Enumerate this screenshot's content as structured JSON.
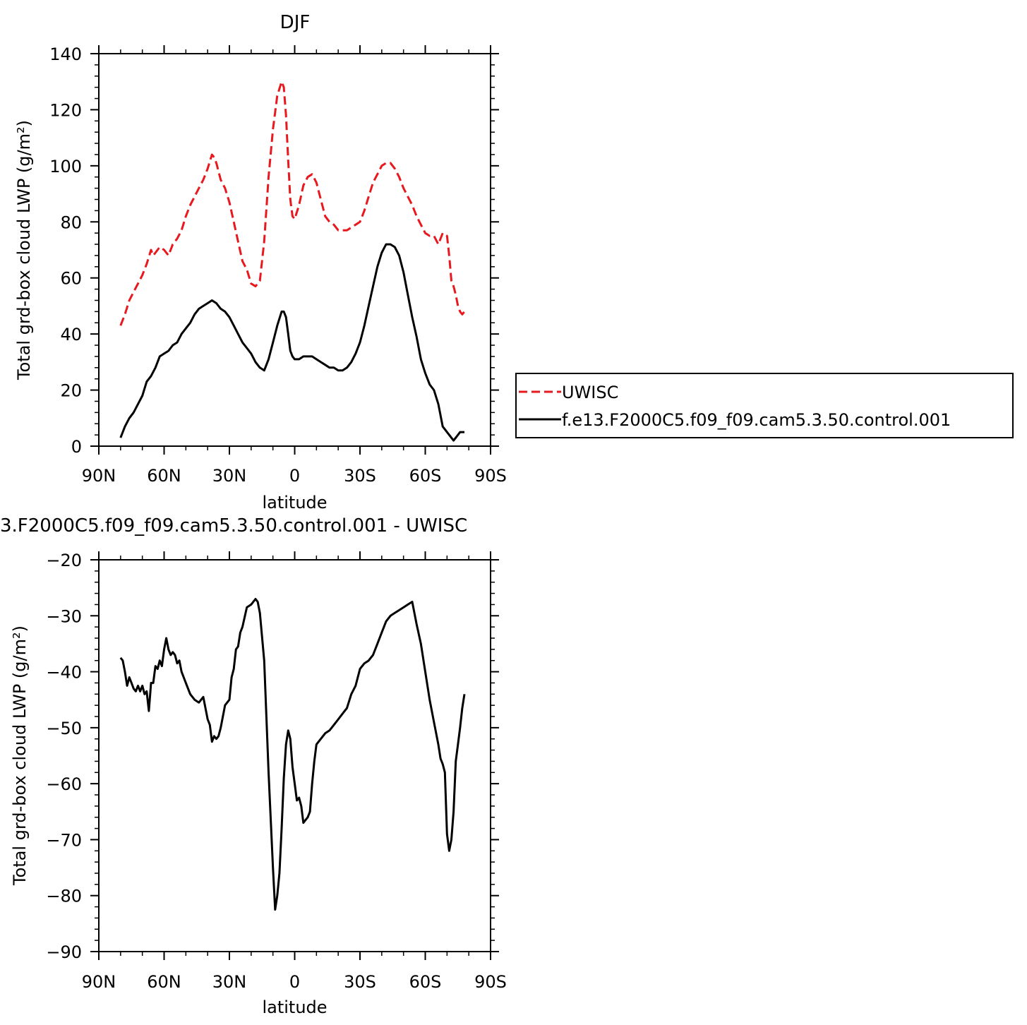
{
  "chart_data": [
    {
      "type": "line",
      "title": "DJF",
      "xlabel": "latitude",
      "ylabel": "Total grd-box cloud LWP (g/m²)",
      "xlim": [
        90,
        -90
      ],
      "ylim": [
        0,
        140
      ],
      "x_ticks": [
        90,
        60,
        30,
        0,
        -30,
        -60,
        -90
      ],
      "x_tick_labels": [
        "90N",
        "60N",
        "30N",
        "0",
        "30S",
        "60S",
        "90S"
      ],
      "y_ticks": [
        0,
        20,
        40,
        60,
        80,
        100,
        120,
        140
      ],
      "y_tick_labels": [
        "0",
        "20",
        "40",
        "60",
        "80",
        "100",
        "120",
        "140"
      ],
      "legend": {
        "placement": "right",
        "entries": [
          "UWISC",
          "f.e13.F2000C5.f09_f09.cam5.3.50.control.001"
        ]
      },
      "series": [
        {
          "name": "UWISC",
          "color": "#e8191e",
          "dash": "dashed",
          "x": [
            80,
            78,
            76,
            74,
            72,
            70,
            68,
            66,
            65,
            64,
            62,
            60,
            58,
            56,
            54,
            52,
            50,
            48,
            46,
            44,
            42,
            40,
            38,
            37,
            36,
            34,
            32,
            30,
            28,
            26,
            24,
            22,
            20,
            18,
            16,
            14,
            12,
            10,
            8,
            6,
            5,
            4,
            3,
            2,
            1,
            0,
            -2,
            -4,
            -6,
            -8,
            -10,
            -12,
            -14,
            -16,
            -18,
            -20,
            -22,
            -24,
            -26,
            -28,
            -30,
            -32,
            -34,
            -36,
            -38,
            -40,
            -42,
            -44,
            -46,
            -48,
            -50,
            -52,
            -54,
            -56,
            -58,
            -60,
            -62,
            -64,
            -66,
            -68,
            -70,
            -71,
            -72,
            -73,
            -74,
            -75,
            -76,
            -77,
            -78
          ],
          "y": [
            43,
            47,
            52,
            55,
            58,
            61,
            65,
            70,
            68,
            69,
            71,
            70,
            68,
            72,
            74,
            77,
            82,
            86,
            89,
            92,
            95,
            99,
            104,
            103,
            101,
            95,
            92,
            87,
            80,
            73,
            66,
            63,
            58,
            57,
            59,
            73,
            96,
            113,
            125,
            130,
            128,
            118,
            102,
            88,
            82,
            81,
            86,
            93,
            96,
            97,
            94,
            88,
            82,
            80,
            79,
            77,
            77,
            77,
            78,
            79,
            80,
            84,
            89,
            94,
            97,
            100,
            101,
            101,
            99,
            96,
            92,
            89,
            86,
            82,
            79,
            76,
            75,
            75,
            72,
            76,
            75,
            68,
            59,
            57,
            54,
            50,
            48,
            47,
            48
          ]
        },
        {
          "name": "f.e13.F2000C5.f09_f09.cam5.3.50.control.001",
          "color": "#000000",
          "dash": "solid",
          "x": [
            80,
            78,
            76,
            74,
            72,
            70,
            68,
            66,
            64,
            62,
            60,
            58,
            56,
            54,
            52,
            50,
            48,
            46,
            44,
            42,
            40,
            38,
            36,
            34,
            32,
            30,
            28,
            26,
            24,
            22,
            20,
            18,
            16,
            14,
            12,
            10,
            8,
            6,
            5,
            4,
            3,
            2,
            1,
            0,
            -2,
            -4,
            -6,
            -8,
            -10,
            -12,
            -14,
            -16,
            -18,
            -20,
            -22,
            -24,
            -26,
            -28,
            -30,
            -32,
            -34,
            -36,
            -38,
            -40,
            -42,
            -44,
            -46,
            -48,
            -50,
            -52,
            -54,
            -56,
            -58,
            -60,
            -62,
            -64,
            -66,
            -68,
            -70,
            -71,
            -72,
            -73,
            -74,
            -75,
            -76,
            -77,
            -78
          ],
          "y": [
            3,
            7,
            10,
            12,
            15,
            18,
            23,
            25,
            28,
            32,
            33,
            34,
            36,
            37,
            40,
            42,
            44,
            47,
            49,
            50,
            51,
            52,
            51,
            49,
            48,
            46,
            43,
            40,
            37,
            35,
            33,
            30,
            28,
            27,
            31,
            37,
            43,
            48,
            48,
            46,
            40,
            34,
            32,
            31,
            31,
            32,
            32,
            32,
            31,
            30,
            29,
            28,
            28,
            27,
            27,
            28,
            30,
            33,
            37,
            43,
            50,
            57,
            64,
            69,
            72,
            72,
            71,
            68,
            62,
            54,
            46,
            39,
            31,
            26,
            22,
            20,
            15,
            7,
            5,
            4,
            3,
            2,
            3,
            4,
            5,
            5,
            5
          ]
        }
      ]
    },
    {
      "type": "line",
      "title": "3.F2000C5.f09_f09.cam5.3.50.control.001  -  UWISC",
      "xlabel": "latitude",
      "ylabel": "Total grd-box cloud LWP (g/m²)",
      "xlim": [
        90,
        -90
      ],
      "ylim": [
        -90,
        -20
      ],
      "x_ticks": [
        90,
        60,
        30,
        0,
        -30,
        -60,
        -90
      ],
      "x_tick_labels": [
        "90N",
        "60N",
        "30N",
        "0",
        "30S",
        "60S",
        "90S"
      ],
      "y_ticks": [
        -90,
        -80,
        -70,
        -60,
        -50,
        -40,
        -30,
        -20
      ],
      "y_tick_labels": [
        "−90",
        "−80",
        "−70",
        "−60",
        "−50",
        "−40",
        "−30",
        "−20"
      ],
      "series": [
        {
          "color": "#000000",
          "dash": "solid",
          "x": [
            80,
            79,
            78,
            77,
            76,
            75,
            74,
            73,
            72,
            71,
            70,
            69,
            68,
            67,
            66,
            65,
            64,
            63,
            62,
            61,
            60,
            59,
            58,
            57,
            56,
            55,
            54,
            53,
            52,
            50,
            48,
            46,
            44,
            42,
            40,
            39,
            38,
            37,
            36,
            35,
            34,
            32,
            30,
            29,
            28,
            27,
            26,
            25,
            24,
            22,
            20,
            18,
            17,
            16,
            14,
            12,
            10,
            9,
            8,
            7,
            6,
            5,
            4,
            3,
            2,
            1,
            0,
            -1,
            -2,
            -3,
            -4,
            -6,
            -7,
            -8,
            -9,
            -10,
            -12,
            -14,
            -16,
            -18,
            -20,
            -22,
            -24,
            -26,
            -28,
            -30,
            -32,
            -34,
            -36,
            -38,
            -40,
            -42,
            -44,
            -46,
            -48,
            -50,
            -52,
            -54,
            -56,
            -58,
            -60,
            -62,
            -64,
            -66,
            -67,
            -68,
            -69,
            -70,
            -71,
            -72,
            -73,
            -74,
            -75,
            -76,
            -77,
            -78
          ],
          "y": [
            -37.5,
            -38,
            -40,
            -42.5,
            -41,
            -42,
            -43,
            -43.5,
            -42.5,
            -43.5,
            -42.5,
            -44,
            -43.5,
            -47,
            -42,
            -42,
            -39,
            -39.5,
            -38,
            -39,
            -36,
            -34,
            -36,
            -37,
            -36.5,
            -37,
            -38.5,
            -38,
            -40,
            -42,
            -44,
            -45,
            -45.5,
            -44.5,
            -48.5,
            -49.5,
            -52.5,
            -51.5,
            -52,
            -51.5,
            -50,
            -46,
            -45,
            -41,
            -39.5,
            -36,
            -35.5,
            -33,
            -32,
            -28.5,
            -28,
            -27,
            -27.5,
            -29.5,
            -38,
            -58,
            -75,
            -82.5,
            -80,
            -76,
            -68,
            -59,
            -53,
            -50.5,
            -52,
            -57,
            -60,
            -63,
            -62.5,
            -64,
            -67,
            -66,
            -65,
            -60,
            -56,
            -53,
            -52,
            -51,
            -50.5,
            -49.5,
            -48.5,
            -47.5,
            -46.5,
            -44,
            -42.5,
            -39.5,
            -38.5,
            -38,
            -37,
            -35,
            -33,
            -31,
            -30,
            -29.5,
            -29,
            -28.5,
            -28,
            -27.5,
            -31.5,
            -35,
            -40,
            -45,
            -49,
            -53,
            -55.5,
            -56.5,
            -58,
            -69,
            -72,
            -70,
            -65,
            -56,
            -53,
            -50,
            -46.5,
            -44
          ]
        }
      ]
    }
  ]
}
